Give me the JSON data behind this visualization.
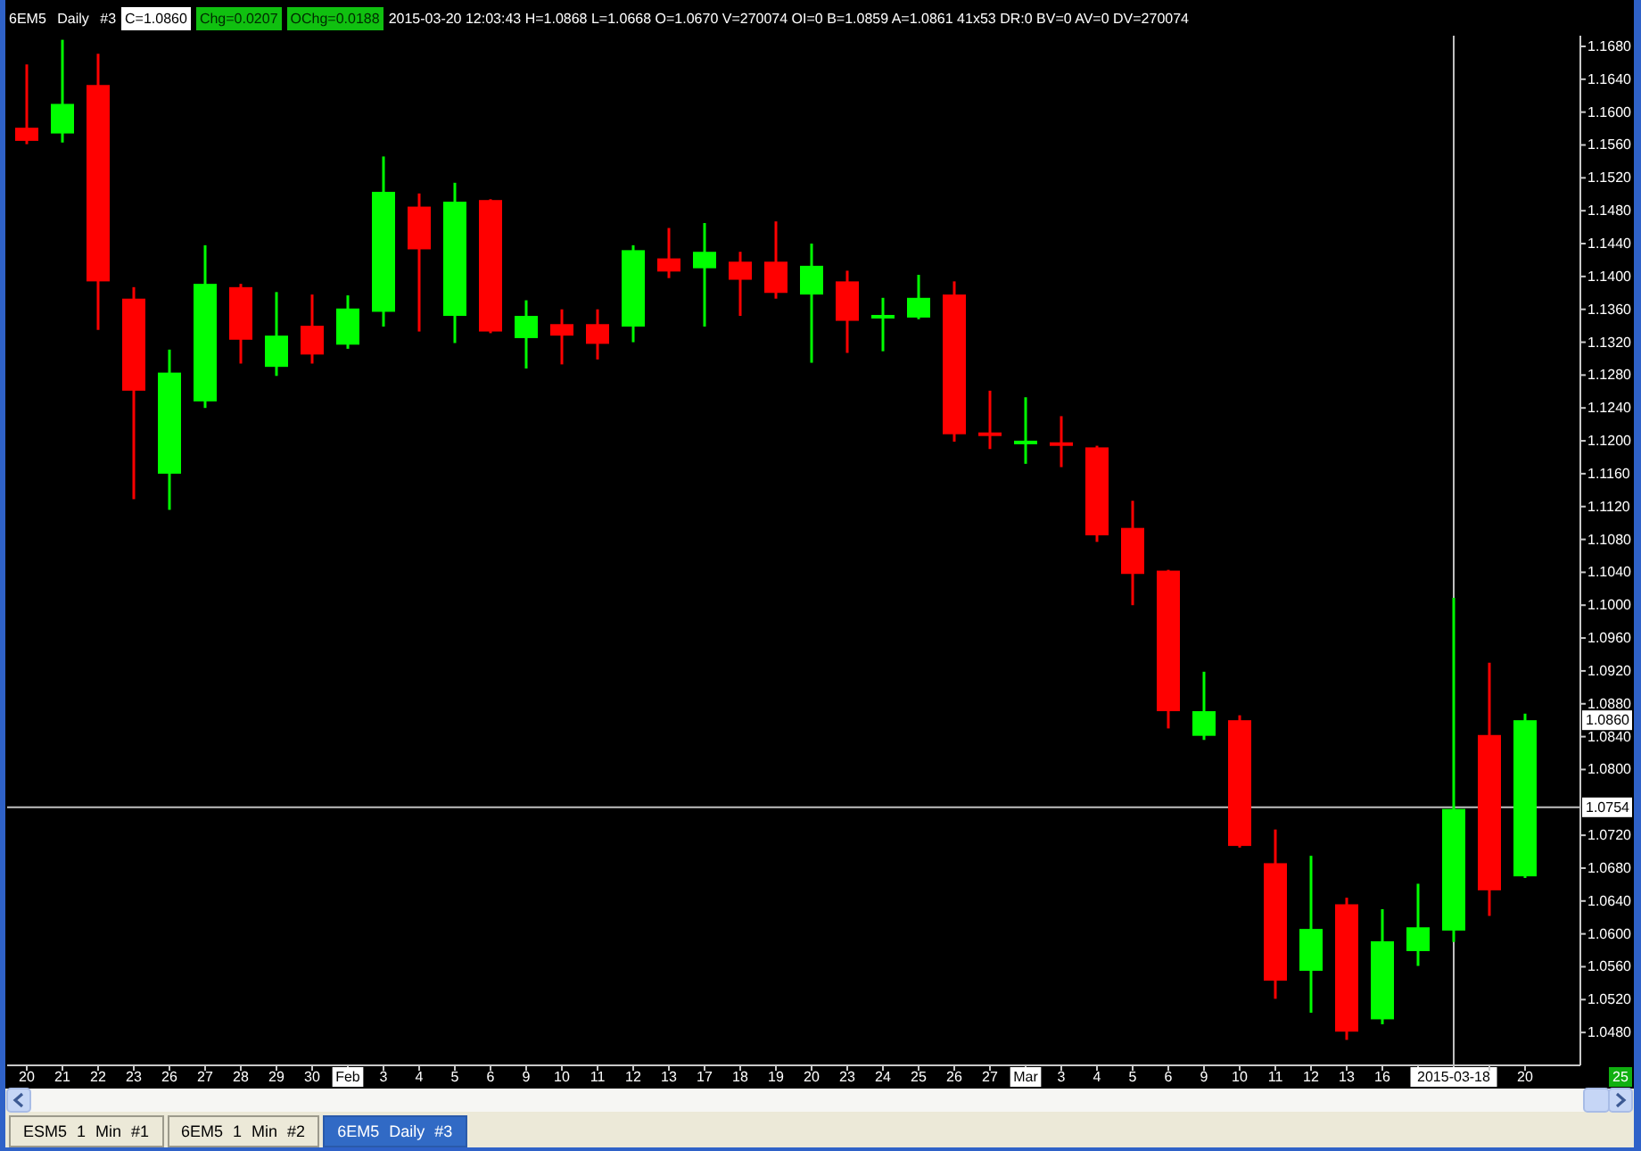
{
  "chart_data": {
    "type": "candlestick",
    "title": "6EM5 Daily #3",
    "subtitle": "2015-03-20 12:03:43 H=1.0868 L=1.0668 O=1.0670 V=270074 OI=0 B=1.0859 A=1.0861 41x53 DR:0 BV=0 AV=0 DV=270074",
    "categories": [
      "20",
      "21",
      "22",
      "23",
      "26",
      "27",
      "28",
      "29",
      "30",
      "Feb",
      "3",
      "4",
      "5",
      "6",
      "9",
      "10",
      "11",
      "12",
      "13",
      "17",
      "18",
      "19",
      "20",
      "23",
      "24",
      "25",
      "26",
      "27",
      "Mar",
      "3",
      "4",
      "5",
      "6",
      "9",
      "10",
      "11",
      "12",
      "13",
      "16",
      null,
      "2015-03-18",
      null,
      "20"
    ],
    "ohlc": [
      [
        1.1581,
        1.1658,
        1.1561,
        1.1565
      ],
      [
        1.1574,
        1.1688,
        1.1563,
        1.161
      ],
      [
        1.1633,
        1.1671,
        1.1335,
        1.1394
      ],
      [
        1.1373,
        1.1387,
        1.1129,
        1.1261
      ],
      [
        1.116,
        1.1311,
        1.1116,
        1.1283
      ],
      [
        1.1248,
        1.1438,
        1.124,
        1.1391
      ],
      [
        1.1387,
        1.1391,
        1.1294,
        1.1323
      ],
      [
        1.129,
        1.1381,
        1.1279,
        1.1328
      ],
      [
        1.134,
        1.1378,
        1.1294,
        1.1305
      ],
      [
        1.1317,
        1.1377,
        1.1312,
        1.1361
      ],
      [
        1.1357,
        1.1546,
        1.1339,
        1.1503
      ],
      [
        1.1485,
        1.1501,
        1.1333,
        1.1433
      ],
      [
        1.1352,
        1.1514,
        1.1319,
        1.1491
      ],
      [
        1.1493,
        1.1494,
        1.1331,
        1.1333
      ],
      [
        1.1325,
        1.1371,
        1.1288,
        1.1352
      ],
      [
        1.1342,
        1.136,
        1.1293,
        1.1328
      ],
      [
        1.1342,
        1.136,
        1.1299,
        1.1318
      ],
      [
        1.1339,
        1.1438,
        1.132,
        1.1432
      ],
      [
        1.1422,
        1.1459,
        1.1398,
        1.1406
      ],
      [
        1.141,
        1.1465,
        1.1339,
        1.143
      ],
      [
        1.1418,
        1.143,
        1.1352,
        1.1396
      ],
      [
        1.1418,
        1.1467,
        1.1373,
        1.138
      ],
      [
        1.1378,
        1.144,
        1.1295,
        1.1413
      ],
      [
        1.1394,
        1.1407,
        1.1307,
        1.1346
      ],
      [
        1.135,
        1.1374,
        1.1309,
        1.1352
      ],
      [
        1.135,
        1.1402,
        1.1348,
        1.1374
      ],
      [
        1.1378,
        1.1394,
        1.1199,
        1.1208
      ],
      [
        1.1209,
        1.1261,
        1.119,
        1.1207
      ],
      [
        1.1197,
        1.1253,
        1.1172,
        1.1199
      ],
      [
        1.1197,
        1.123,
        1.1168,
        1.1195
      ],
      [
        1.1192,
        1.1194,
        1.1077,
        1.1085
      ],
      [
        1.1094,
        1.1127,
        1.1,
        1.1038
      ],
      [
        1.1042,
        1.1043,
        1.085,
        1.0871
      ],
      [
        1.0841,
        1.0919,
        1.0836,
        1.0871
      ],
      [
        1.086,
        1.0866,
        1.0705,
        1.0707
      ],
      [
        1.0686,
        1.0727,
        1.0521,
        1.0543
      ],
      [
        1.0555,
        1.0695,
        1.0504,
        1.0606
      ],
      [
        1.0636,
        1.0644,
        1.0471,
        1.0481
      ],
      [
        1.0496,
        1.063,
        1.049,
        1.0591
      ],
      [
        1.0579,
        1.0661,
        1.0561,
        1.0608
      ],
      [
        1.0604,
        1.1009,
        1.059,
        1.0752
      ],
      [
        1.0842,
        1.093,
        1.0622,
        1.0653
      ],
      [
        1.067,
        1.0868,
        1.0668,
        1.086
      ]
    ],
    "colors": [
      "#ff0000",
      "#00ff00",
      "#ff0000",
      "#ff0000",
      "#00ff00",
      "#00ff00",
      "#ff0000",
      "#00ff00",
      "#ff0000",
      "#00ff00",
      "#00ff00",
      "#ff0000",
      "#00ff00",
      "#ff0000",
      "#00ff00",
      "#ff0000",
      "#ff0000",
      "#00ff00",
      "#ff0000",
      "#00ff00",
      "#ff0000",
      "#ff0000",
      "#00ff00",
      "#ff0000",
      "#00ff00",
      "#00ff00",
      "#ff0000",
      "#ff0000",
      "#00ff00",
      "#ff0000",
      "#ff0000",
      "#ff0000",
      "#ff0000",
      "#00ff00",
      "#ff0000",
      "#ff0000",
      "#00ff00",
      "#ff0000",
      "#00ff00",
      "#00ff00",
      "#00ff00",
      "#ff0000",
      "#00ff00"
    ],
    "ylim": [
      1.044,
      1.1693
    ],
    "yticks": [
      {
        "value": 1.048,
        "label": "1.0480"
      },
      {
        "value": 1.052,
        "label": "1.0520"
      },
      {
        "value": 1.056,
        "label": "1.0560"
      },
      {
        "value": 1.06,
        "label": "1.0600"
      },
      {
        "value": 1.064,
        "label": "1.0640"
      },
      {
        "value": 1.068,
        "label": "1.0680"
      },
      {
        "value": 1.072,
        "label": "1.0720"
      },
      {
        "value": 1.08,
        "label": "1.0800"
      },
      {
        "value": 1.084,
        "label": "1.0840"
      },
      {
        "value": 1.088,
        "label": "1.0880"
      },
      {
        "value": 1.092,
        "label": "1.0920"
      },
      {
        "value": 1.096,
        "label": "1.0960"
      },
      {
        "value": 1.1,
        "label": "1.1000"
      },
      {
        "value": 1.104,
        "label": "1.1040"
      },
      {
        "value": 1.108,
        "label": "1.1080"
      },
      {
        "value": 1.112,
        "label": "1.1120"
      },
      {
        "value": 1.116,
        "label": "1.1160"
      },
      {
        "value": 1.12,
        "label": "1.1200"
      },
      {
        "value": 1.124,
        "label": "1.1240"
      },
      {
        "value": 1.128,
        "label": "1.1280"
      },
      {
        "value": 1.132,
        "label": "1.1320"
      },
      {
        "value": 1.136,
        "label": "1.1360"
      },
      {
        "value": 1.14,
        "label": "1.1400"
      },
      {
        "value": 1.144,
        "label": "1.1440"
      },
      {
        "value": 1.148,
        "label": "1.1480"
      },
      {
        "value": 1.152,
        "label": "1.1520"
      },
      {
        "value": 1.156,
        "label": "1.1560"
      },
      {
        "value": 1.16,
        "label": "1.1600"
      },
      {
        "value": 1.164,
        "label": "1.1640"
      },
      {
        "value": 1.168,
        "label": "1.1680"
      }
    ],
    "ref_lines": [
      {
        "axis": "y",
        "value": 1.0754,
        "label": "1.0754",
        "color": "#c0c0c0"
      },
      {
        "axis": "x",
        "value": "2015-03-18",
        "color": "#c0c0c0"
      }
    ],
    "annotations": [
      "C=1.0860",
      "Chg=0.0207",
      "OChg=0.0188",
      {
        "text": "1.0860",
        "y": 1.086
      },
      "25",
      "ESM5 1 Min #1",
      "6EM5 1 Min #2",
      "6EM5 Daily #3"
    ]
  }
}
